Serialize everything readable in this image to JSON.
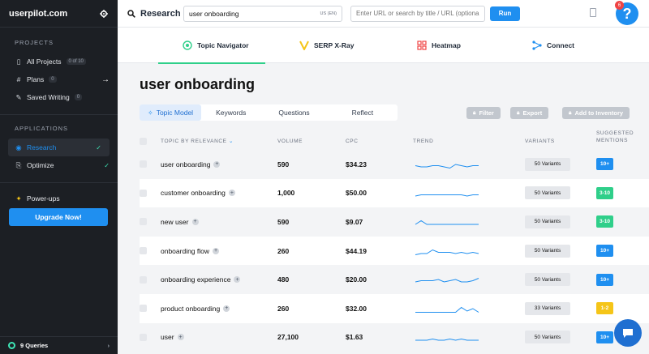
{
  "sidebar": {
    "brand": "userpilot.com",
    "projects_heading": "PROJECTS",
    "items": [
      {
        "label": "All Projects",
        "badge": "0 of 10",
        "icon": "folder-icon"
      },
      {
        "label": "Plans",
        "badge": "0",
        "icon": "hash-icon"
      },
      {
        "label": "Saved Writing",
        "badge": "0",
        "icon": "edit-icon"
      }
    ],
    "applications_heading": "APPLICATIONS",
    "apps": [
      {
        "label": "Research",
        "active": true
      },
      {
        "label": "Optimize",
        "active": false
      }
    ],
    "powerups": "Power-ups",
    "upgrade": "Upgrade Now!",
    "queries": "9 Queries"
  },
  "header": {
    "title": "Research",
    "keyword": "user onboarding",
    "locale": "US (EN)",
    "url_placeholder": "Enter URL or search by title / URL (optional)",
    "run": "Run",
    "notifications": "6",
    "help": "?"
  },
  "tools": [
    {
      "label": "Topic Navigator",
      "active": true
    },
    {
      "label": "SERP X-Ray",
      "active": false
    },
    {
      "label": "Heatmap",
      "active": false
    },
    {
      "label": "Connect",
      "active": false
    }
  ],
  "page": {
    "title": "user onboarding",
    "subtabs": [
      "Topic Model",
      "Keywords",
      "Questions",
      "Reflect"
    ],
    "actions": [
      "Filter",
      "Export",
      "Add to Inventory"
    ]
  },
  "table": {
    "headers": {
      "topic": "TOPIC BY RELEVANCE",
      "volume": "VOLUME",
      "cpc": "CPC",
      "trend": "TREND",
      "variants": "VARIANTS",
      "mentions_1": "SUGGESTED",
      "mentions_2": "MENTIONS"
    },
    "rows": [
      {
        "topic": "user onboarding",
        "volume": "590",
        "cpc": "$34.23",
        "variants": "50 Variants",
        "mentions": "10+",
        "color": "#1f8ff0",
        "trend": [
          5,
          6,
          6,
          5,
          5,
          6,
          7,
          4,
          5,
          6,
          5,
          5
        ]
      },
      {
        "topic": "customer onboarding",
        "volume": "1,000",
        "cpc": "$50.00",
        "variants": "50 Variants",
        "mentions": "3-10",
        "color": "#2fcf8a",
        "trend": [
          6,
          5,
          5,
          5,
          5,
          5,
          5,
          5,
          5,
          6,
          5,
          5
        ]
      },
      {
        "topic": "new user",
        "volume": "590",
        "cpc": "$9.07",
        "variants": "50 Variants",
        "mentions": "3-10",
        "color": "#2fcf8a",
        "trend": [
          6,
          3,
          6,
          6,
          6,
          6,
          6,
          6,
          6,
          6,
          6,
          6
        ]
      },
      {
        "topic": "onboarding flow",
        "volume": "260",
        "cpc": "$44.19",
        "variants": "50 Variants",
        "mentions": "10+",
        "color": "#1f8ff0",
        "trend": [
          7,
          6,
          6,
          3,
          5,
          5,
          5,
          6,
          5,
          6,
          5,
          6
        ]
      },
      {
        "topic": "onboarding experience",
        "volume": "480",
        "cpc": "$20.00",
        "variants": "50 Variants",
        "mentions": "10+",
        "color": "#1f8ff0",
        "trend": [
          6,
          5,
          5,
          5,
          4,
          6,
          5,
          4,
          6,
          6,
          5,
          3
        ]
      },
      {
        "topic": "product onboarding",
        "volume": "260",
        "cpc": "$32.00",
        "variants": "33 Variants",
        "mentions": "1-2",
        "color": "#f5c518",
        "trend": [
          7,
          7,
          7,
          7,
          7,
          7,
          7,
          7,
          3,
          6,
          4,
          7
        ]
      },
      {
        "topic": "user",
        "volume": "27,100",
        "cpc": "$1.63",
        "variants": "50 Variants",
        "mentions": "10+",
        "color": "#1f8ff0",
        "trend": [
          6,
          6,
          6,
          5,
          6,
          6,
          5,
          6,
          5,
          6,
          6,
          6
        ]
      }
    ]
  }
}
